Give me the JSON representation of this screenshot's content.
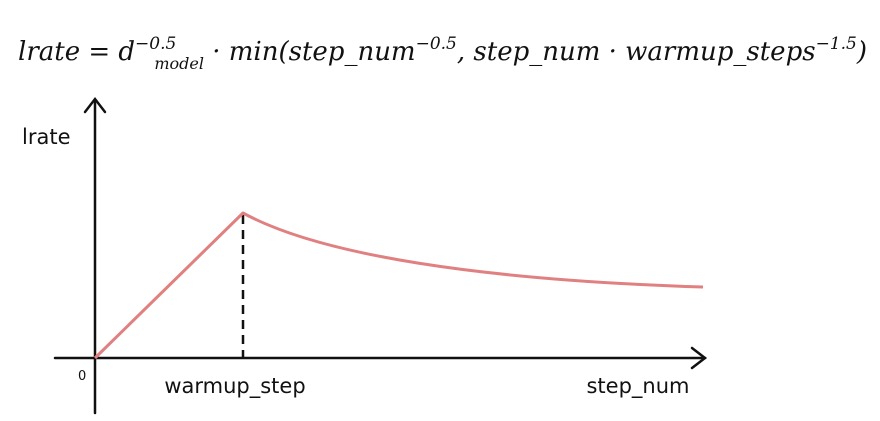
{
  "formula": {
    "segments": [
      "lrate = d",
      "−0.5",
      "model",
      " · min(step_num",
      "−0.5",
      ", step_num · warmup_steps",
      "−1.5",
      ")"
    ]
  },
  "diagram": {
    "y_label": "lrate",
    "origin": "0",
    "x_marker_label": "warmup_step",
    "x_label": "step_num"
  }
}
